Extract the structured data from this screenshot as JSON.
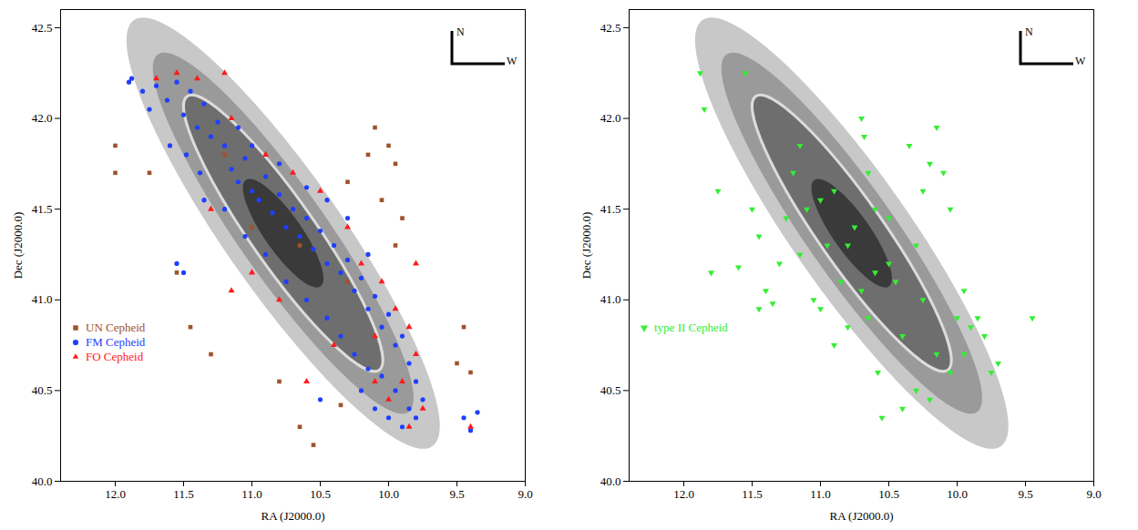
{
  "chart_data": [
    {
      "type": "scatter",
      "xlabel": "RA (J2000.0)",
      "ylabel": "Dec (J2000.0)",
      "xlim": [
        12.4,
        9.0
      ],
      "ylim": [
        40.0,
        42.6
      ],
      "xticks": [
        {
          "value": 12.0,
          "label": "12.0"
        },
        {
          "value": 11.5,
          "label": "11.5"
        },
        {
          "value": 11.0,
          "label": "11.0"
        },
        {
          "value": 10.5,
          "label": "10.5"
        },
        {
          "value": 10.0,
          "label": "10.0"
        },
        {
          "value": 9.5,
          "label": "9.5"
        },
        {
          "value": 9.0,
          "label": "9.0"
        }
      ],
      "yticks": [
        {
          "value": 40.0,
          "label": "40.0"
        },
        {
          "value": 40.5,
          "label": "40.5"
        },
        {
          "value": 41.0,
          "label": "41.0"
        },
        {
          "value": 41.5,
          "label": "41.5"
        },
        {
          "value": 42.0,
          "label": "42.0"
        },
        {
          "value": 42.5,
          "label": "42.5"
        }
      ],
      "legend": "left",
      "annotations": [
        {
          "text": "N"
        },
        {
          "text": "W"
        }
      ],
      "series": [
        {
          "name": "UN Cepheid",
          "color": "#a0522d",
          "marker": "square",
          "values": [
            [
              12.0,
              41.85
            ],
            [
              12.0,
              41.7
            ],
            [
              11.75,
              41.7
            ],
            [
              11.55,
              41.15
            ],
            [
              11.45,
              40.85
            ],
            [
              11.3,
              40.7
            ],
            [
              10.8,
              40.55
            ],
            [
              10.65,
              40.3
            ],
            [
              10.55,
              40.2
            ],
            [
              10.35,
              40.42
            ],
            [
              10.0,
              41.85
            ],
            [
              9.95,
              41.75
            ],
            [
              10.05,
              41.55
            ],
            [
              10.15,
              41.8
            ],
            [
              10.3,
              41.65
            ],
            [
              9.9,
              41.45
            ],
            [
              9.95,
              41.3
            ],
            [
              10.1,
              41.95
            ],
            [
              9.5,
              40.65
            ],
            [
              9.45,
              40.85
            ],
            [
              9.4,
              40.6
            ],
            [
              10.65,
              41.3
            ],
            [
              11.0,
              41.4
            ],
            [
              11.2,
              41.8
            ],
            [
              10.3,
              41.1
            ]
          ]
        },
        {
          "name": "FM Cepheid",
          "color": "#1f3fff",
          "marker": "circle",
          "values": [
            [
              11.88,
              42.22
            ],
            [
              11.8,
              42.15
            ],
            [
              11.75,
              42.05
            ],
            [
              11.7,
              42.18
            ],
            [
              11.62,
              42.1
            ],
            [
              11.55,
              42.2
            ],
            [
              11.5,
              42.02
            ],
            [
              11.45,
              42.15
            ],
            [
              11.4,
              41.95
            ],
            [
              11.35,
              42.08
            ],
            [
              11.3,
              41.9
            ],
            [
              11.25,
              41.98
            ],
            [
              11.6,
              41.85
            ],
            [
              11.48,
              41.8
            ],
            [
              11.38,
              41.7
            ],
            [
              11.2,
              41.85
            ],
            [
              11.15,
              41.72
            ],
            [
              11.1,
              41.65
            ],
            [
              11.05,
              41.78
            ],
            [
              11.0,
              41.6
            ],
            [
              10.95,
              41.55
            ],
            [
              10.9,
              41.68
            ],
            [
              10.85,
              41.48
            ],
            [
              10.8,
              41.58
            ],
            [
              10.75,
              41.4
            ],
            [
              10.7,
              41.5
            ],
            [
              10.65,
              41.35
            ],
            [
              10.6,
              41.45
            ],
            [
              10.55,
              41.28
            ],
            [
              10.5,
              41.38
            ],
            [
              10.45,
              41.2
            ],
            [
              10.4,
              41.3
            ],
            [
              10.35,
              41.15
            ],
            [
              10.3,
              41.22
            ],
            [
              10.25,
              41.05
            ],
            [
              10.2,
              41.12
            ],
            [
              10.15,
              40.95
            ],
            [
              10.1,
              41.02
            ],
            [
              10.05,
              40.85
            ],
            [
              10.0,
              40.92
            ],
            [
              9.95,
              40.75
            ],
            [
              9.9,
              40.8
            ],
            [
              9.85,
              40.65
            ],
            [
              9.8,
              40.55
            ],
            [
              9.75,
              40.45
            ],
            [
              9.85,
              40.4
            ],
            [
              9.95,
              40.5
            ],
            [
              10.05,
              40.58
            ],
            [
              10.15,
              40.62
            ],
            [
              10.2,
              40.5
            ],
            [
              10.1,
              40.4
            ],
            [
              10.0,
              40.35
            ],
            [
              9.9,
              40.3
            ],
            [
              9.8,
              40.35
            ],
            [
              10.25,
              40.7
            ],
            [
              10.35,
              40.8
            ],
            [
              10.45,
              40.9
            ],
            [
              10.6,
              41.0
            ],
            [
              10.75,
              41.1
            ],
            [
              10.9,
              41.25
            ],
            [
              11.05,
              41.35
            ],
            [
              11.2,
              41.5
            ],
            [
              11.35,
              41.55
            ],
            [
              11.1,
              41.95
            ],
            [
              11.0,
              41.85
            ],
            [
              10.8,
              41.75
            ],
            [
              10.6,
              41.62
            ],
            [
              10.45,
              41.55
            ],
            [
              10.3,
              41.45
            ],
            [
              10.15,
              41.25
            ],
            [
              11.55,
              41.2
            ],
            [
              11.5,
              41.15
            ],
            [
              10.5,
              40.45
            ],
            [
              9.45,
              40.35
            ],
            [
              9.4,
              40.28
            ],
            [
              9.35,
              40.38
            ],
            [
              11.9,
              42.2
            ]
          ]
        },
        {
          "name": "FO Cepheid",
          "color": "#ff1a1a",
          "marker": "triangle",
          "values": [
            [
              11.7,
              42.22
            ],
            [
              11.55,
              42.25
            ],
            [
              11.4,
              42.22
            ],
            [
              11.2,
              42.25
            ],
            [
              11.15,
              42.0
            ],
            [
              10.9,
              41.8
            ],
            [
              10.7,
              41.7
            ],
            [
              10.5,
              41.6
            ],
            [
              10.3,
              41.4
            ],
            [
              10.2,
              41.2
            ],
            [
              10.05,
              41.1
            ],
            [
              9.95,
              40.95
            ],
            [
              9.85,
              40.85
            ],
            [
              9.8,
              40.7
            ],
            [
              9.9,
              40.55
            ],
            [
              10.0,
              40.45
            ],
            [
              10.1,
              40.55
            ],
            [
              9.85,
              40.3
            ],
            [
              9.75,
              40.4
            ],
            [
              10.6,
              40.55
            ],
            [
              11.0,
              41.15
            ],
            [
              11.15,
              41.05
            ],
            [
              9.8,
              41.2
            ],
            [
              9.4,
              40.3
            ],
            [
              10.4,
              40.75
            ],
            [
              10.8,
              41.0
            ],
            [
              11.3,
              41.5
            ],
            [
              10.1,
              40.8
            ]
          ]
        }
      ]
    },
    {
      "type": "scatter",
      "xlabel": "RA (J2000.0)",
      "ylabel": "Dec (J2000.0)",
      "xlim": [
        12.4,
        9.0
      ],
      "ylim": [
        40.0,
        42.6
      ],
      "xticks": [
        {
          "value": 12.0,
          "label": "12.0"
        },
        {
          "value": 11.5,
          "label": "11.5"
        },
        {
          "value": 11.0,
          "label": "11.0"
        },
        {
          "value": 10.5,
          "label": "10.5"
        },
        {
          "value": 10.0,
          "label": "10.0"
        },
        {
          "value": 9.5,
          "label": "9.5"
        },
        {
          "value": 9.0,
          "label": "9.0"
        }
      ],
      "yticks": [
        {
          "value": 40.0,
          "label": "40.0"
        },
        {
          "value": 40.5,
          "label": "40.5"
        },
        {
          "value": 41.0,
          "label": "41.0"
        },
        {
          "value": 41.5,
          "label": "41.5"
        },
        {
          "value": 42.0,
          "label": "42.0"
        },
        {
          "value": 42.5,
          "label": "42.5"
        }
      ],
      "legend": "left",
      "annotations": [
        {
          "text": "N"
        },
        {
          "text": "W"
        }
      ],
      "series": [
        {
          "name": "type II Cepheid",
          "color": "#33ee33",
          "marker": "triangle-down",
          "values": [
            [
              11.88,
              42.25
            ],
            [
              11.85,
              42.05
            ],
            [
              11.55,
              42.25
            ],
            [
              11.75,
              41.6
            ],
            [
              11.8,
              41.15
            ],
            [
              11.6,
              41.18
            ],
            [
              11.5,
              41.5
            ],
            [
              11.45,
              41.35
            ],
            [
              11.4,
              41.05
            ],
            [
              11.35,
              40.98
            ],
            [
              11.45,
              40.95
            ],
            [
              11.3,
              41.2
            ],
            [
              11.25,
              41.45
            ],
            [
              11.2,
              41.7
            ],
            [
              11.15,
              41.85
            ],
            [
              11.1,
              41.5
            ],
            [
              11.05,
              41.0
            ],
            [
              11.0,
              40.95
            ],
            [
              10.95,
              41.3
            ],
            [
              10.9,
              41.6
            ],
            [
              10.85,
              41.1
            ],
            [
              10.8,
              40.85
            ],
            [
              10.75,
              41.4
            ],
            [
              10.7,
              42.0
            ],
            [
              10.68,
              41.9
            ],
            [
              10.65,
              41.7
            ],
            [
              10.6,
              41.5
            ],
            [
              10.58,
              40.6
            ],
            [
              10.55,
              40.35
            ],
            [
              10.5,
              41.2
            ],
            [
              10.45,
              41.1
            ],
            [
              10.4,
              40.8
            ],
            [
              10.35,
              41.85
            ],
            [
              10.3,
              41.3
            ],
            [
              10.25,
              41.6
            ],
            [
              10.2,
              41.75
            ],
            [
              10.15,
              41.95
            ],
            [
              10.1,
              41.7
            ],
            [
              10.05,
              41.5
            ],
            [
              10.0,
              40.9
            ],
            [
              9.95,
              40.7
            ],
            [
              9.9,
              40.85
            ],
            [
              9.85,
              40.9
            ],
            [
              9.8,
              40.8
            ],
            [
              9.75,
              40.6
            ],
            [
              9.7,
              40.65
            ],
            [
              9.45,
              40.9
            ],
            [
              10.2,
              40.45
            ],
            [
              10.3,
              40.5
            ],
            [
              10.4,
              40.4
            ],
            [
              10.6,
              41.15
            ],
            [
              10.8,
              41.3
            ],
            [
              11.0,
              41.55
            ],
            [
              10.7,
              41.05
            ],
            [
              10.9,
              40.75
            ],
            [
              10.15,
              40.7
            ],
            [
              10.05,
              40.6
            ],
            [
              9.95,
              41.05
            ],
            [
              10.25,
              41.0
            ],
            [
              11.15,
              41.25
            ],
            [
              10.5,
              41.45
            ],
            [
              10.65,
              40.9
            ]
          ]
        }
      ]
    }
  ]
}
